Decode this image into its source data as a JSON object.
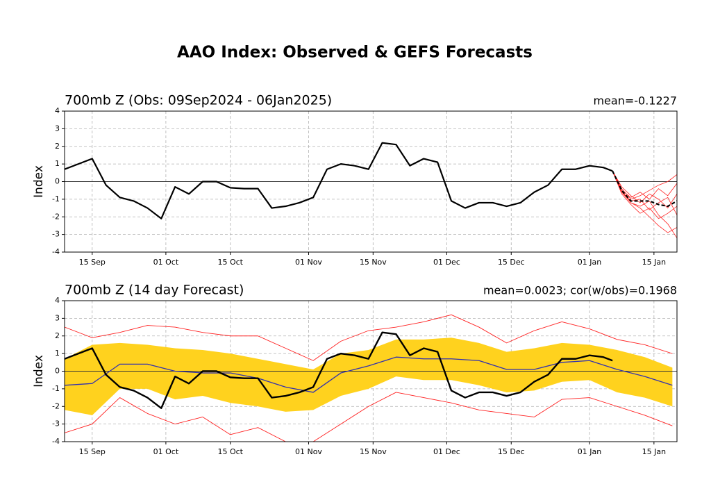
{
  "title": "AAO Index: Observed & GEFS Forecasts",
  "title_color": "#0000ff",
  "chart_data": [
    {
      "type": "line",
      "title": "700mb Z (Obs: 09Sep2024 - 06Jan2025)",
      "annotation": "mean=-0.1227",
      "ylabel": "Index",
      "xlim": [
        0,
        133
      ],
      "ylim": [
        -4,
        4
      ],
      "xticks": [
        {
          "value": 6,
          "label": "15 Sep"
        },
        {
          "value": 22,
          "label": "01 Oct"
        },
        {
          "value": 36,
          "label": "15 Oct"
        },
        {
          "value": 53,
          "label": "01 Nov"
        },
        {
          "value": 67,
          "label": "15 Nov"
        },
        {
          "value": 83,
          "label": "01 Dec"
        },
        {
          "value": 97,
          "label": "15 Dec"
        },
        {
          "value": 114,
          "label": "01 Jan"
        },
        {
          "value": 128,
          "label": "15 Jan"
        }
      ],
      "yticks": [
        -4,
        -3,
        -2,
        -1,
        0,
        1,
        2,
        3,
        4
      ],
      "grid": true,
      "hline": 0,
      "series": [
        {
          "color": "#ff2020",
          "linewidth": 0.8,
          "x": [
            119,
            121,
            123,
            125,
            127,
            129,
            131,
            133
          ],
          "values": [
            0.6,
            -0.4,
            -1.0,
            -0.8,
            -0.5,
            -0.2,
            0.0,
            0.4
          ]
        },
        {
          "color": "#ff2020",
          "linewidth": 0.8,
          "x": [
            119,
            121,
            123,
            125,
            127,
            129,
            131,
            133
          ],
          "values": [
            0.6,
            -0.6,
            -1.2,
            -1.5,
            -2.0,
            -2.5,
            -2.9,
            -2.6
          ]
        },
        {
          "color": "#ff2020",
          "linewidth": 0.8,
          "x": [
            119,
            121,
            123,
            125,
            127,
            129,
            131,
            133
          ],
          "values": [
            0.6,
            -0.5,
            -0.9,
            -0.6,
            -1.0,
            -0.4,
            -0.8,
            -0.1
          ]
        },
        {
          "color": "#ff2020",
          "linewidth": 0.8,
          "x": [
            119,
            121,
            123,
            125,
            127,
            129,
            131,
            133
          ],
          "values": [
            0.6,
            -0.7,
            -1.3,
            -1.8,
            -1.5,
            -2.1,
            -1.8,
            -1.4
          ]
        },
        {
          "color": "#ff2020",
          "linewidth": 0.8,
          "x": [
            119,
            121,
            123,
            125,
            127,
            129,
            131,
            133
          ],
          "values": [
            0.6,
            -0.3,
            -0.8,
            -1.2,
            -0.7,
            -1.0,
            -1.5,
            -0.7
          ]
        },
        {
          "color": "#ff2020",
          "linewidth": 0.8,
          "x": [
            119,
            121,
            123,
            125,
            127,
            129,
            131,
            133
          ],
          "values": [
            0.6,
            -0.6,
            -1.1,
            -1.0,
            -1.6,
            -1.2,
            -0.9,
            -1.9
          ]
        },
        {
          "color": "#ff2020",
          "linewidth": 0.8,
          "x": [
            119,
            121,
            123,
            125,
            127,
            129,
            131,
            133
          ],
          "values": [
            0.6,
            -0.5,
            -1.2,
            -1.4,
            -1.1,
            -1.9,
            -2.4,
            -3.2
          ]
        },
        {
          "color": "#000000",
          "linewidth": 2.2,
          "dashed": true,
          "x": [
            119,
            121,
            123,
            125,
            127,
            129,
            131,
            133
          ],
          "values": [
            0.6,
            -0.5,
            -1.1,
            -1.1,
            -1.1,
            -1.3,
            -1.4,
            -1.1
          ]
        },
        {
          "color": "#000000",
          "linewidth": 2.2,
          "x": [
            0,
            3,
            6,
            9,
            12,
            15,
            18,
            21,
            24,
            27,
            30,
            33,
            36,
            39,
            42,
            45,
            48,
            51,
            54,
            57,
            60,
            63,
            66,
            69,
            72,
            75,
            78,
            81,
            84,
            87,
            90,
            93,
            96,
            99,
            102,
            105,
            108,
            111,
            114,
            117,
            119
          ],
          "values": [
            0.7,
            1.0,
            1.3,
            -0.2,
            -0.9,
            -1.1,
            -1.5,
            -2.1,
            -0.3,
            -0.7,
            0.0,
            0.0,
            -0.35,
            -0.4,
            -0.4,
            -1.5,
            -1.4,
            -1.2,
            -0.9,
            0.7,
            1.0,
            0.9,
            0.7,
            2.2,
            2.1,
            0.9,
            1.3,
            1.1,
            -1.1,
            -1.5,
            -1.2,
            -1.2,
            -1.4,
            -1.2,
            -0.6,
            -0.2,
            0.7,
            0.7,
            0.9,
            0.8,
            0.6
          ]
        }
      ]
    },
    {
      "type": "line",
      "title": "700mb Z (14 day Forecast)",
      "annotation": "mean=0.0023; cor(w/obs)=0.1968",
      "ylabel": "Index",
      "xlim": [
        0,
        133
      ],
      "ylim": [
        -4,
        4
      ],
      "xticks": [
        {
          "value": 6,
          "label": "15 Sep"
        },
        {
          "value": 22,
          "label": "01 Oct"
        },
        {
          "value": 36,
          "label": "15 Oct"
        },
        {
          "value": 53,
          "label": "01 Nov"
        },
        {
          "value": 67,
          "label": "15 Nov"
        },
        {
          "value": 83,
          "label": "01 Dec"
        },
        {
          "value": 97,
          "label": "15 Dec"
        },
        {
          "value": 114,
          "label": "01 Jan"
        },
        {
          "value": 128,
          "label": "15 Jan"
        }
      ],
      "yticks": [
        -4,
        -3,
        -2,
        -1,
        0,
        1,
        2,
        3,
        4
      ],
      "grid": true,
      "hline": 0,
      "bands": [
        {
          "color": "#ffd21e",
          "x": [
            0,
            6,
            12,
            18,
            24,
            30,
            36,
            42,
            48,
            54,
            60,
            66,
            72,
            78,
            84,
            90,
            96,
            102,
            108,
            114,
            120,
            126,
            132
          ],
          "upper": [
            0.7,
            1.5,
            1.6,
            1.5,
            1.3,
            1.2,
            1.0,
            0.7,
            0.4,
            0.1,
            1.0,
            1.2,
            1.8,
            1.8,
            1.9,
            1.6,
            1.1,
            1.3,
            1.6,
            1.5,
            1.2,
            0.8,
            0.2
          ],
          "lower": [
            -2.2,
            -2.5,
            -1.0,
            -1.0,
            -1.6,
            -1.4,
            -1.8,
            -2.0,
            -2.3,
            -2.2,
            -1.4,
            -1.0,
            -0.3,
            -0.5,
            -0.5,
            -0.8,
            -1.2,
            -1.1,
            -0.6,
            -0.5,
            -1.2,
            -1.5,
            -2.0
          ]
        }
      ],
      "series": [
        {
          "color": "#ff2020",
          "linewidth": 0.9,
          "x": [
            0,
            6,
            12,
            18,
            24,
            30,
            36,
            42,
            48,
            54,
            60,
            66,
            72,
            78,
            84,
            90,
            96,
            102,
            108,
            114,
            120,
            126,
            132
          ],
          "values": [
            2.5,
            1.9,
            2.2,
            2.6,
            2.5,
            2.2,
            2.0,
            2.0,
            1.3,
            0.6,
            1.7,
            2.3,
            2.5,
            2.8,
            3.2,
            2.5,
            1.6,
            2.3,
            2.8,
            2.4,
            1.8,
            1.5,
            1.0
          ]
        },
        {
          "color": "#ff2020",
          "linewidth": 0.9,
          "x": [
            0,
            6,
            12,
            18,
            24,
            30,
            36,
            42,
            48,
            54,
            60,
            66,
            72,
            78,
            84,
            90,
            96,
            102,
            108,
            114,
            120,
            126,
            132
          ],
          "values": [
            -3.5,
            -3.0,
            -1.5,
            -2.4,
            -3.0,
            -2.6,
            -3.6,
            -3.2,
            -4.0,
            -4.0,
            -3.0,
            -2.0,
            -1.2,
            -1.5,
            -1.8,
            -2.2,
            -2.4,
            -2.6,
            -1.6,
            -1.5,
            -2.0,
            -2.5,
            -3.1
          ]
        },
        {
          "color": "#3030b0",
          "linewidth": 1.3,
          "x": [
            0,
            6,
            12,
            18,
            24,
            30,
            36,
            42,
            48,
            54,
            60,
            66,
            72,
            78,
            84,
            90,
            96,
            102,
            108,
            114,
            120,
            126,
            132
          ],
          "values": [
            -0.8,
            -0.7,
            0.4,
            0.4,
            0.0,
            -0.1,
            -0.1,
            -0.4,
            -0.9,
            -1.2,
            -0.1,
            0.3,
            0.8,
            0.7,
            0.7,
            0.6,
            0.1,
            0.1,
            0.5,
            0.6,
            0.1,
            -0.3,
            -0.8
          ]
        },
        {
          "color": "#000000",
          "linewidth": 2.4,
          "x": [
            0,
            3,
            6,
            9,
            12,
            15,
            18,
            21,
            24,
            27,
            30,
            33,
            36,
            39,
            42,
            45,
            48,
            51,
            54,
            57,
            60,
            63,
            66,
            69,
            72,
            75,
            78,
            81,
            84,
            87,
            90,
            93,
            96,
            99,
            102,
            105,
            108,
            111,
            114,
            117,
            119
          ],
          "values": [
            0.7,
            1.0,
            1.3,
            -0.2,
            -0.9,
            -1.1,
            -1.5,
            -2.1,
            -0.3,
            -0.7,
            0.0,
            0.0,
            -0.35,
            -0.4,
            -0.4,
            -1.5,
            -1.4,
            -1.2,
            -0.9,
            0.7,
            1.0,
            0.9,
            0.7,
            2.2,
            2.1,
            0.9,
            1.3,
            1.1,
            -1.1,
            -1.5,
            -1.2,
            -1.2,
            -1.4,
            -1.2,
            -0.6,
            -0.2,
            0.7,
            0.7,
            0.9,
            0.8,
            0.6
          ]
        }
      ]
    }
  ]
}
